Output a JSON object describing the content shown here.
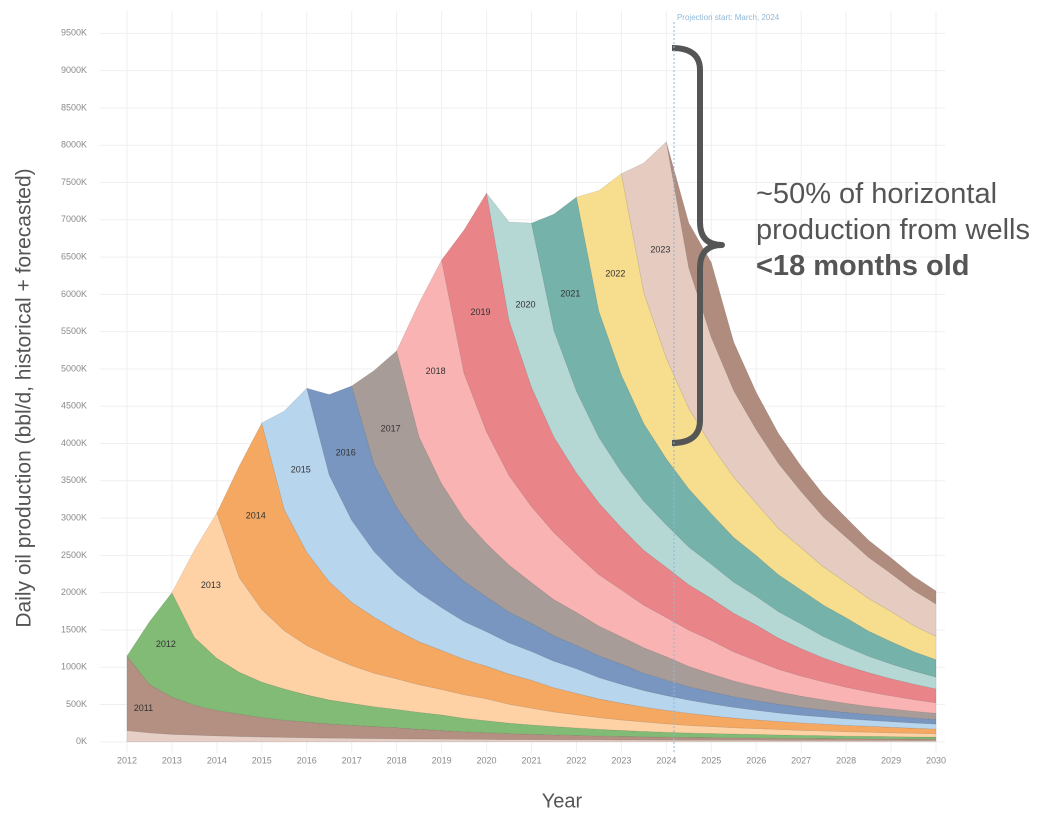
{
  "chart_data": {
    "type": "stacked-area",
    "y_label": "Daily oil production (bbl/d, historical + forecasted)",
    "x_label": "Year",
    "projection": {
      "x": 2024.17,
      "label": "Projection start: March, 2024",
      "color": "#8fb8d8"
    },
    "annotation": {
      "text": "~50% of horizontal production from wells",
      "bold": "<18 months old"
    },
    "grid": true,
    "xlim": [
      2011.4,
      2030.2
    ],
    "ylim": [
      -150,
      9800
    ],
    "xticks": [
      2012,
      2013,
      2014,
      2015,
      2016,
      2017,
      2018,
      2019,
      2020,
      2021,
      2022,
      2023,
      2024,
      2025,
      2026,
      2027,
      2028,
      2029,
      2030
    ],
    "yticks": [
      {
        "value": 0,
        "label": "0K"
      },
      {
        "value": 500,
        "label": "500K"
      },
      {
        "value": 1000,
        "label": "1000K"
      },
      {
        "value": 1500,
        "label": "1500K"
      },
      {
        "value": 2000,
        "label": "2000K"
      },
      {
        "value": 2500,
        "label": "2500K"
      },
      {
        "value": 3000,
        "label": "3000K"
      },
      {
        "value": 3500,
        "label": "3500K"
      },
      {
        "value": 4000,
        "label": "4000K"
      },
      {
        "value": 4500,
        "label": "4500K"
      },
      {
        "value": 5000,
        "label": "5000K"
      },
      {
        "value": 5500,
        "label": "5500K"
      },
      {
        "value": 6000,
        "label": "6000K"
      },
      {
        "value": 6500,
        "label": "6500K"
      },
      {
        "value": 7000,
        "label": "7000K"
      },
      {
        "value": 7500,
        "label": "7500K"
      },
      {
        "value": 8000,
        "label": "8000K"
      },
      {
        "value": 8500,
        "label": "8500K"
      },
      {
        "value": 9000,
        "label": "9000K"
      },
      {
        "value": 9500,
        "label": "9500K"
      }
    ],
    "x": [
      2012,
      2012.5,
      2013,
      2013.5,
      2014,
      2014.5,
      2015,
      2015.5,
      2016,
      2016.5,
      2017,
      2017.5,
      2018,
      2018.5,
      2019,
      2019.5,
      2020,
      2020.5,
      2021,
      2021.5,
      2022,
      2022.5,
      2023,
      2023.5,
      2024,
      2024.5,
      2025,
      2025.5,
      2026,
      2026.5,
      2027,
      2027.5,
      2028,
      2028.5,
      2029,
      2029.5,
      2030
    ],
    "series": [
      {
        "name": null,
        "color": "#e6cfc6",
        "values": [
          150,
          120,
          100,
          90,
          80,
          72,
          65,
          60,
          55,
          50,
          46,
          43,
          40,
          38,
          36,
          34,
          32,
          30,
          29,
          28,
          27,
          26,
          25,
          24,
          23,
          22,
          22,
          21,
          21,
          20,
          20,
          20,
          19,
          19,
          19,
          18,
          18
        ]
      },
      {
        "name": "2011",
        "color": "#b39082",
        "values": [
          1000,
          650,
          500,
          400,
          340,
          300,
          260,
          230,
          210,
          190,
          175,
          162,
          150,
          130,
          115,
          100,
          90,
          80,
          72,
          65,
          58,
          52,
          47,
          43,
          40,
          37,
          34,
          32,
          30,
          28,
          26,
          24,
          22,
          21,
          20,
          19,
          18
        ]
      },
      {
        "name": "2012",
        "color": "#82bb75",
        "values": [
          0,
          840,
          1400,
          910,
          700,
          560,
          476,
          420,
          364,
          322,
          294,
          266,
          245,
          227,
          210,
          182,
          161,
          140,
          126,
          112,
          101,
          91,
          81,
          73,
          66,
          60,
          56,
          52,
          48,
          45,
          42,
          39,
          36,
          34,
          31,
          29,
          28
        ]
      },
      {
        "name": "2013",
        "color": "#ffd2a6",
        "values": [
          null,
          null,
          0,
          1170,
          1950,
          1268,
          975,
          780,
          663,
          585,
          507,
          449,
          410,
          371,
          341,
          316,
          293,
          254,
          224,
          195,
          176,
          156,
          140,
          127,
          113,
          101,
          92,
          84,
          78,
          72,
          66,
          62,
          59,
          55,
          51,
          47,
          43
        ]
      },
      {
        "name": "2014",
        "color": "#f4a862",
        "values": [
          null,
          null,
          null,
          null,
          0,
          1500,
          2500,
          1625,
          1250,
          1000,
          850,
          750,
          650,
          575,
          525,
          475,
          438,
          405,
          375,
          325,
          288,
          250,
          225,
          200,
          180,
          163,
          145,
          130,
          118,
          108,
          100,
          93,
          85,
          80,
          75,
          70,
          65
        ]
      },
      {
        "name": "2015",
        "color": "#b8d5ee",
        "values": [
          null,
          null,
          null,
          null,
          null,
          null,
          0,
          1320,
          2200,
          1430,
          1100,
          880,
          748,
          660,
          572,
          506,
          462,
          418,
          385,
          356,
          330,
          286,
          253,
          220,
          198,
          176,
          158,
          143,
          128,
          114,
          103,
          95,
          88,
          81,
          75,
          70,
          66
        ]
      },
      {
        "name": "2016",
        "color": "#7896c0",
        "values": [
          null,
          null,
          null,
          null,
          null,
          null,
          null,
          null,
          0,
          1080,
          1800,
          1170,
          900,
          720,
          612,
          540,
          468,
          414,
          378,
          342,
          315,
          292,
          270,
          234,
          207,
          180,
          162,
          144,
          130,
          117,
          104,
          94,
          85,
          77,
          72,
          67,
          61
        ]
      },
      {
        "name": "2017",
        "color": "#a89c98",
        "values": [
          null,
          null,
          null,
          null,
          null,
          null,
          null,
          null,
          null,
          null,
          0,
          1260,
          2100,
          1365,
          1050,
          840,
          714,
          630,
          546,
          483,
          441,
          399,
          368,
          340,
          315,
          273,
          242,
          210,
          189,
          168,
          151,
          137,
          122,
          109,
          99,
          90,
          84
        ]
      },
      {
        "name": "2018",
        "color": "#fab3b3",
        "values": [
          null,
          null,
          null,
          null,
          null,
          null,
          null,
          null,
          null,
          null,
          null,
          null,
          0,
          1800,
          3000,
          1950,
          1500,
          1200,
          1020,
          900,
          780,
          690,
          630,
          570,
          525,
          486,
          450,
          390,
          345,
          300,
          270,
          240,
          216,
          195,
          174,
          156,
          141
        ]
      },
      {
        "name": "2019",
        "color": "#e98489",
        "values": [
          null,
          null,
          null,
          null,
          null,
          null,
          null,
          null,
          null,
          null,
          null,
          null,
          null,
          null,
          0,
          1920,
          3200,
          2080,
          1600,
          1280,
          1088,
          960,
          832,
          736,
          672,
          608,
          560,
          518,
          480,
          416,
          368,
          320,
          288,
          256,
          230,
          208,
          186
        ]
      },
      {
        "name": "2020",
        "color": "#b5d8d4",
        "values": [
          null,
          null,
          null,
          null,
          null,
          null,
          null,
          null,
          null,
          null,
          null,
          null,
          null,
          null,
          null,
          null,
          0,
          1320,
          2200,
          1430,
          1100,
          880,
          748,
          660,
          572,
          506,
          462,
          418,
          385,
          356,
          330,
          286,
          253,
          220,
          198,
          176,
          158
        ]
      },
      {
        "name": "2021",
        "color": "#74b2aa",
        "values": [
          null,
          null,
          null,
          null,
          null,
          null,
          null,
          null,
          null,
          null,
          null,
          null,
          null,
          null,
          null,
          null,
          null,
          null,
          0,
          1560,
          2600,
          1690,
          1300,
          1040,
          884,
          780,
          676,
          598,
          546,
          494,
          455,
          421,
          390,
          338,
          299,
          260,
          234
        ]
      },
      {
        "name": "2022",
        "color": "#f6de8e",
        "values": [
          null,
          null,
          null,
          null,
          null,
          null,
          null,
          null,
          null,
          null,
          null,
          null,
          null,
          null,
          null,
          null,
          null,
          null,
          null,
          null,
          0,
          1620,
          2700,
          1755,
          1350,
          1080,
          918,
          810,
          702,
          621,
          567,
          513,
          473,
          437,
          405,
          351,
          311
        ]
      },
      {
        "name": "2023",
        "color": "#e5cbc0",
        "values": [
          null,
          null,
          null,
          null,
          null,
          null,
          null,
          null,
          null,
          null,
          null,
          null,
          null,
          null,
          null,
          null,
          null,
          null,
          null,
          null,
          null,
          null,
          0,
          1740,
          2900,
          1885,
          1450,
          1160,
          986,
          870,
          754,
          667,
          609,
          551,
          508,
          470,
          435
        ]
      },
      {
        "name": null,
        "color": "#b08c7e",
        "values": [
          null,
          null,
          null,
          null,
          null,
          null,
          null,
          null,
          null,
          null,
          null,
          null,
          null,
          null,
          null,
          null,
          null,
          null,
          null,
          null,
          null,
          null,
          null,
          null,
          0,
          600,
          1000,
          650,
          500,
          400,
          340,
          300,
          260,
          230,
          210,
          190,
          175
        ]
      }
    ]
  }
}
